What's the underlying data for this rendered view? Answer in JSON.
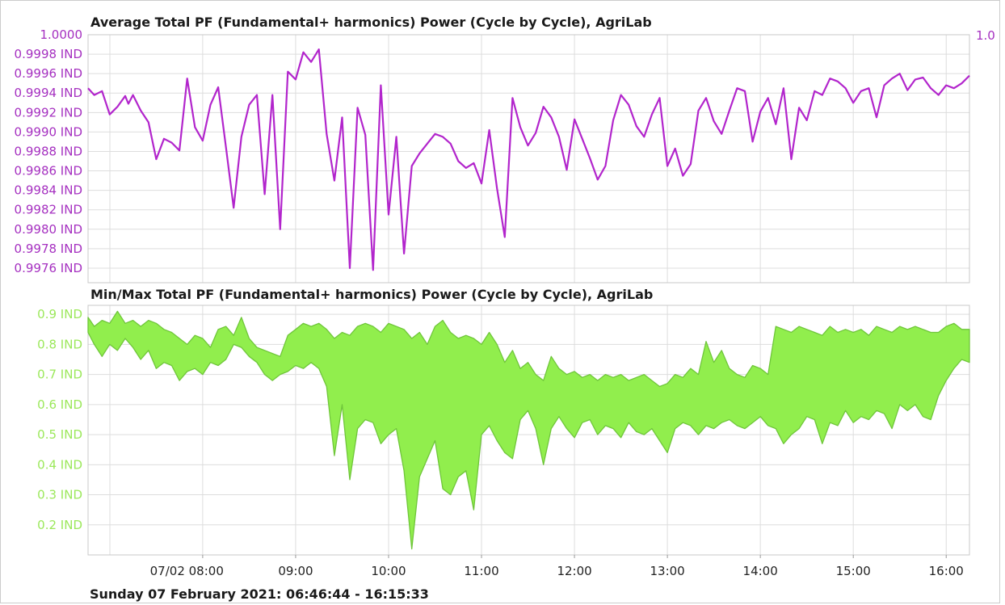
{
  "colors": {
    "avg_series": "#b225cc",
    "avg_axis_text": "#a530c0",
    "minmax_fill": "#91ee4d",
    "minmax_stroke": "#6fc63a",
    "minmax_axis_text": "#9be85a",
    "grid": "#dddddd",
    "frame": "#c8c8c8"
  },
  "footer_text": "Sunday 07 February 2021: 06:46:44 - 16:15:33",
  "chart_data": [
    {
      "type": "line",
      "title": "Average Total PF (Fundamental+ harmonics) Power (Cycle by Cycle), AgriLab",
      "ylim": [
        0.99745,
        1.0
      ],
      "y_ticks": [
        1.0,
        0.9998,
        0.9996,
        0.9994,
        0.9992,
        0.999,
        0.9988,
        0.9986,
        0.9984,
        0.9982,
        0.998,
        0.9978,
        0.9976
      ],
      "y_tick_labels": [
        "1.0000",
        "0.9998 IND",
        "0.9996 IND",
        "0.9994 IND",
        "0.9992 IND",
        "0.9990 IND",
        "0.9988 IND",
        "0.9986 IND",
        "0.9984 IND",
        "0.9982 IND",
        "0.9980 IND",
        "0.9978 IND",
        "0.9976 IND"
      ],
      "right_axis_label": "1.0",
      "x_range": [
        "06:46",
        "16:15"
      ],
      "series": [
        {
          "x": [
            "06:46",
            "06:50",
            "06:55",
            "07:00",
            "07:05",
            "07:10",
            "07:12",
            "07:15",
            "07:20",
            "07:25",
            "07:30",
            "07:35",
            "07:40",
            "07:45",
            "07:50",
            "07:55",
            "08:00",
            "08:05",
            "08:10",
            "08:15",
            "08:20",
            "08:25",
            "08:30",
            "08:35",
            "08:40",
            "08:45",
            "08:50",
            "08:55",
            "09:00",
            "09:05",
            "09:10",
            "09:15",
            "09:20",
            "09:25",
            "09:30",
            "09:35",
            "09:40",
            "09:45",
            "09:50",
            "09:55",
            "10:00",
            "10:05",
            "10:10",
            "10:15",
            "10:20",
            "10:25",
            "10:30",
            "10:35",
            "10:40",
            "10:45",
            "10:50",
            "10:55",
            "11:00",
            "11:05",
            "11:10",
            "11:15",
            "11:20",
            "11:25",
            "11:30",
            "11:35",
            "11:40",
            "11:45",
            "11:50",
            "11:55",
            "12:00",
            "12:05",
            "12:10",
            "12:15",
            "12:20",
            "12:25",
            "12:30",
            "12:35",
            "12:40",
            "12:45",
            "12:50",
            "12:55",
            "13:00",
            "13:05",
            "13:10",
            "13:15",
            "13:20",
            "13:25",
            "13:30",
            "13:35",
            "13:40",
            "13:45",
            "13:50",
            "13:55",
            "14:00",
            "14:05",
            "14:10",
            "14:15",
            "14:20",
            "14:25",
            "14:30",
            "14:35",
            "14:40",
            "14:45",
            "14:50",
            "14:55",
            "15:00",
            "15:05",
            "15:10",
            "15:15",
            "15:20",
            "15:25",
            "15:30",
            "15:35",
            "15:40",
            "15:45",
            "15:50",
            "15:55",
            "16:00",
            "16:05",
            "16:10",
            "16:15"
          ],
          "values": [
            0.99945,
            0.99938,
            0.99942,
            0.99918,
            0.99926,
            0.99937,
            0.99929,
            0.99938,
            0.99922,
            0.9991,
            0.99872,
            0.99893,
            0.99889,
            0.99881,
            0.99955,
            0.99905,
            0.99891,
            0.99928,
            0.99946,
            0.99885,
            0.99822,
            0.99895,
            0.99928,
            0.99938,
            0.99836,
            0.99938,
            0.998,
            0.99962,
            0.99954,
            0.99982,
            0.99972,
            0.99985,
            0.99898,
            0.9985,
            0.99915,
            0.9976,
            0.99925,
            0.99897,
            0.99758,
            0.99948,
            0.99815,
            0.99895,
            0.99775,
            0.99865,
            0.99878,
            0.99888,
            0.99898,
            0.99895,
            0.99888,
            0.9987,
            0.99863,
            0.99868,
            0.99847,
            0.99902,
            0.99842,
            0.99792,
            0.99935,
            0.99905,
            0.99886,
            0.99899,
            0.99926,
            0.99915,
            0.99895,
            0.99861,
            0.99913,
            0.99893,
            0.99873,
            0.99851,
            0.99865,
            0.99912,
            0.99938,
            0.99928,
            0.99906,
            0.99895,
            0.99918,
            0.99935,
            0.99865,
            0.99883,
            0.99855,
            0.99867,
            0.99922,
            0.99935,
            0.99911,
            0.99898,
            0.99922,
            0.99945,
            0.99942,
            0.9989,
            0.99921,
            0.99935,
            0.99908,
            0.99945,
            0.99872,
            0.99925,
            0.99912,
            0.99942,
            0.99938,
            0.99955,
            0.99952,
            0.99945,
            0.9993,
            0.99942,
            0.99945,
            0.99915,
            0.99948,
            0.99955,
            0.9996,
            0.99943,
            0.99954,
            0.99956,
            0.99945,
            0.99938,
            0.99948,
            0.99945,
            0.9995,
            0.99958
          ]
        }
      ]
    },
    {
      "type": "area",
      "title": "Min/Max Total PF (Fundamental+ harmonics) Power (Cycle by Cycle), AgriLab",
      "ylim": [
        0.1,
        0.93
      ],
      "y_ticks": [
        0.9,
        0.8,
        0.7,
        0.6,
        0.5,
        0.4,
        0.3,
        0.2
      ],
      "y_tick_labels": [
        "0.9 IND",
        "0.8 IND",
        "0.7 IND",
        "0.6 IND",
        "0.5 IND",
        "0.4 IND",
        "0.3 IND",
        "0.2 IND"
      ],
      "x_tick_labels": [
        "07/02 08:00",
        "09:00",
        "10:00",
        "11:00",
        "12:00",
        "13:00",
        "14:00",
        "15:00",
        "16:00"
      ],
      "x_ticks": [
        "08:00",
        "09:00",
        "10:00",
        "11:00",
        "12:00",
        "13:00",
        "14:00",
        "15:00",
        "16:00"
      ],
      "x_range": [
        "06:46",
        "16:15"
      ],
      "x": [
        "06:46",
        "06:50",
        "06:55",
        "07:00",
        "07:05",
        "07:10",
        "07:15",
        "07:20",
        "07:25",
        "07:30",
        "07:35",
        "07:40",
        "07:45",
        "07:50",
        "07:55",
        "08:00",
        "08:05",
        "08:10",
        "08:15",
        "08:20",
        "08:25",
        "08:30",
        "08:35",
        "08:40",
        "08:45",
        "08:50",
        "08:55",
        "09:00",
        "09:05",
        "09:10",
        "09:15",
        "09:20",
        "09:25",
        "09:30",
        "09:35",
        "09:40",
        "09:45",
        "09:50",
        "09:55",
        "10:00",
        "10:05",
        "10:10",
        "10:15",
        "10:20",
        "10:25",
        "10:30",
        "10:35",
        "10:40",
        "10:45",
        "10:50",
        "10:55",
        "11:00",
        "11:05",
        "11:10",
        "11:15",
        "11:20",
        "11:25",
        "11:30",
        "11:35",
        "11:40",
        "11:45",
        "11:50",
        "11:55",
        "12:00",
        "12:05",
        "12:10",
        "12:15",
        "12:20",
        "12:25",
        "12:30",
        "12:35",
        "12:40",
        "12:45",
        "12:50",
        "12:55",
        "13:00",
        "13:05",
        "13:10",
        "13:15",
        "13:20",
        "13:25",
        "13:30",
        "13:35",
        "13:40",
        "13:45",
        "13:50",
        "13:55",
        "14:00",
        "14:05",
        "14:10",
        "14:15",
        "14:20",
        "14:25",
        "14:30",
        "14:35",
        "14:40",
        "14:45",
        "14:50",
        "14:55",
        "15:00",
        "15:05",
        "15:10",
        "15:15",
        "15:20",
        "15:25",
        "15:30",
        "15:35",
        "15:40",
        "15:45",
        "15:50",
        "15:55",
        "16:00",
        "16:05",
        "16:10",
        "16:15"
      ],
      "series": [
        {
          "name": "Max",
          "values": [
            0.89,
            0.86,
            0.88,
            0.87,
            0.91,
            0.87,
            0.88,
            0.86,
            0.88,
            0.87,
            0.85,
            0.84,
            0.82,
            0.8,
            0.83,
            0.82,
            0.79,
            0.85,
            0.86,
            0.83,
            0.89,
            0.82,
            0.79,
            0.78,
            0.77,
            0.76,
            0.83,
            0.85,
            0.87,
            0.86,
            0.87,
            0.85,
            0.82,
            0.84,
            0.83,
            0.86,
            0.87,
            0.86,
            0.84,
            0.87,
            0.86,
            0.85,
            0.82,
            0.84,
            0.8,
            0.86,
            0.88,
            0.84,
            0.82,
            0.83,
            0.82,
            0.8,
            0.84,
            0.8,
            0.74,
            0.78,
            0.72,
            0.74,
            0.7,
            0.68,
            0.76,
            0.72,
            0.7,
            0.71,
            0.69,
            0.7,
            0.68,
            0.7,
            0.69,
            0.7,
            0.68,
            0.69,
            0.7,
            0.68,
            0.66,
            0.67,
            0.7,
            0.69,
            0.72,
            0.7,
            0.81,
            0.74,
            0.78,
            0.72,
            0.7,
            0.69,
            0.73,
            0.72,
            0.7,
            0.86,
            0.85,
            0.84,
            0.86,
            0.85,
            0.84,
            0.83,
            0.86,
            0.84,
            0.85,
            0.84,
            0.85,
            0.83,
            0.86,
            0.85,
            0.84,
            0.86,
            0.85,
            0.86,
            0.85,
            0.84,
            0.84,
            0.86,
            0.87,
            0.85,
            0.85
          ]
        },
        {
          "name": "Min",
          "values": [
            0.84,
            0.8,
            0.76,
            0.8,
            0.78,
            0.82,
            0.79,
            0.75,
            0.78,
            0.72,
            0.74,
            0.73,
            0.68,
            0.71,
            0.72,
            0.7,
            0.74,
            0.73,
            0.75,
            0.8,
            0.79,
            0.76,
            0.74,
            0.7,
            0.68,
            0.7,
            0.71,
            0.73,
            0.72,
            0.74,
            0.72,
            0.66,
            0.43,
            0.6,
            0.35,
            0.52,
            0.55,
            0.54,
            0.47,
            0.5,
            0.52,
            0.38,
            0.12,
            0.36,
            0.42,
            0.48,
            0.32,
            0.3,
            0.36,
            0.38,
            0.25,
            0.5,
            0.53,
            0.48,
            0.44,
            0.42,
            0.55,
            0.58,
            0.52,
            0.4,
            0.52,
            0.56,
            0.52,
            0.49,
            0.54,
            0.55,
            0.5,
            0.53,
            0.52,
            0.49,
            0.54,
            0.51,
            0.5,
            0.52,
            0.48,
            0.44,
            0.52,
            0.54,
            0.53,
            0.5,
            0.53,
            0.52,
            0.54,
            0.55,
            0.53,
            0.52,
            0.54,
            0.56,
            0.53,
            0.52,
            0.47,
            0.5,
            0.52,
            0.56,
            0.55,
            0.47,
            0.54,
            0.53,
            0.58,
            0.54,
            0.56,
            0.55,
            0.58,
            0.57,
            0.52,
            0.6,
            0.58,
            0.6,
            0.56,
            0.55,
            0.63,
            0.68,
            0.72,
            0.75,
            0.74
          ]
        }
      ]
    }
  ]
}
